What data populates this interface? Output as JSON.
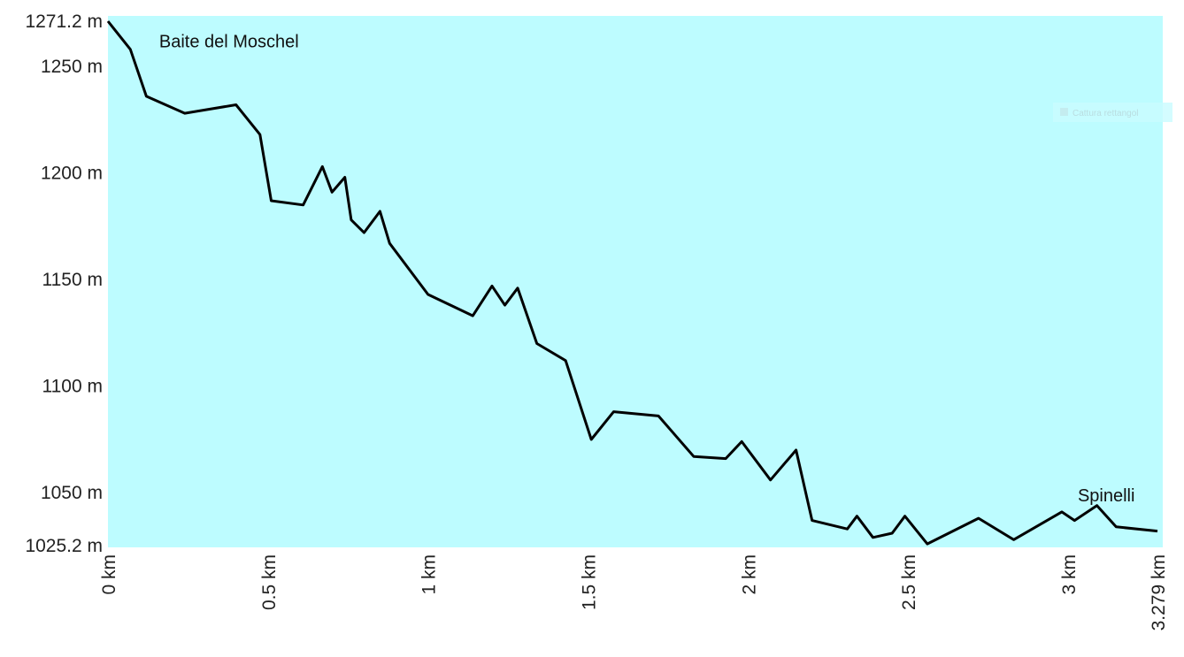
{
  "chart_data": {
    "type": "area",
    "xlabel": "",
    "ylabel": "",
    "xlim": [
      0,
      3.279
    ],
    "ylim": [
      1025.2,
      1271.2
    ],
    "y_ticks": [
      {
        "value": 1271.2,
        "label": "1271.2 m"
      },
      {
        "value": 1250,
        "label": "1250 m"
      },
      {
        "value": 1200,
        "label": "1200 m"
      },
      {
        "value": 1150,
        "label": "1150 m"
      },
      {
        "value": 1100,
        "label": "1100 m"
      },
      {
        "value": 1050,
        "label": "1050 m"
      },
      {
        "value": 1025.2,
        "label": "1025.2 m"
      }
    ],
    "x_ticks": [
      {
        "value": 0,
        "label": "0 km"
      },
      {
        "value": 0.5,
        "label": "0.5 km"
      },
      {
        "value": 1,
        "label": "1 km"
      },
      {
        "value": 1.5,
        "label": "1.5 km"
      },
      {
        "value": 2,
        "label": "2 km"
      },
      {
        "value": 2.5,
        "label": "2.5 km"
      },
      {
        "value": 3,
        "label": "3 km"
      },
      {
        "value": 3.279,
        "label": "3.279 km"
      }
    ],
    "annotations": [
      {
        "text": "Baite del Moschel",
        "x": 0.16,
        "y": 1259
      },
      {
        "text": "Spinelli",
        "x": 3.03,
        "y": 1046
      }
    ],
    "background_color": "#bdfcff",
    "line_color": "#000000",
    "grid": false,
    "series": [
      {
        "x": [
          0,
          0.07,
          0.12,
          0.24,
          0.4,
          0.475,
          0.51,
          0.61,
          0.67,
          0.7,
          0.74,
          0.76,
          0.8,
          0.85,
          0.88,
          1.0,
          1.14,
          1.2,
          1.24,
          1.28,
          1.34,
          1.43,
          1.51,
          1.58,
          1.72,
          1.83,
          1.93,
          1.98,
          2.07,
          2.15,
          2.2,
          2.31,
          2.34,
          2.39,
          2.45,
          2.49,
          2.56,
          2.72,
          2.83,
          2.98,
          3.02,
          3.09,
          3.15,
          3.279
        ],
        "y": [
          1271.2,
          1258,
          1236,
          1228,
          1232,
          1218,
          1187,
          1185,
          1203,
          1191,
          1198,
          1178,
          1172,
          1182,
          1167,
          1143,
          1133,
          1147,
          1138,
          1146,
          1120,
          1112,
          1075,
          1088,
          1086,
          1067,
          1066,
          1074,
          1056,
          1070,
          1037,
          1033,
          1039,
          1029,
          1031,
          1039,
          1026,
          1038,
          1028,
          1041,
          1037,
          1044,
          1034,
          1032
        ]
      }
    ]
  },
  "overlay": {
    "faint_text": "Cattura rettangol"
  }
}
